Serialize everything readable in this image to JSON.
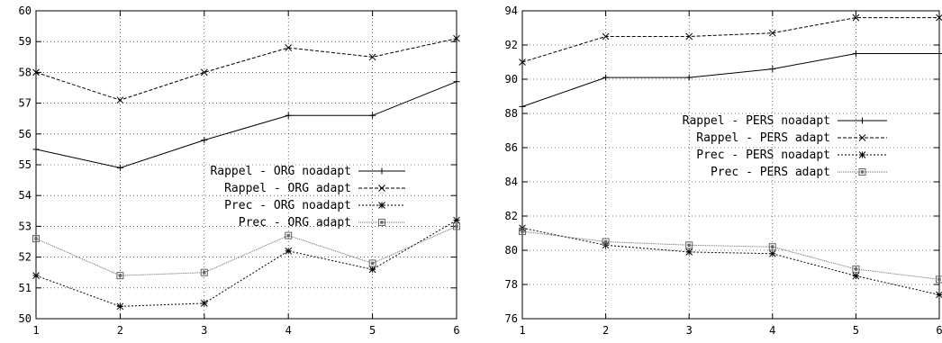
{
  "chart_data": [
    {
      "type": "line",
      "title": "",
      "xlabel": "",
      "ylabel": "",
      "x": [
        1,
        2,
        3,
        4,
        5,
        6
      ],
      "xlim": [
        1,
        6
      ],
      "ylim": [
        50,
        60
      ],
      "yticks": [
        50,
        51,
        52,
        53,
        54,
        55,
        56,
        57,
        58,
        59,
        60
      ],
      "xticks": [
        1,
        2,
        3,
        4,
        5,
        6
      ],
      "grid": true,
      "legend_position": "center-right",
      "series": [
        {
          "name": "Rappel - ORG noadapt",
          "values": [
            55.5,
            54.9,
            55.8,
            56.6,
            56.6,
            57.7
          ],
          "color": "#000000",
          "dash": "none",
          "marker": "plus"
        },
        {
          "name": "Rappel - ORG adapt",
          "values": [
            58.0,
            57.1,
            58.0,
            58.8,
            58.5,
            59.1
          ],
          "color": "#000000",
          "dash": "4 2",
          "marker": "x"
        },
        {
          "name": "Prec - ORG noadapt",
          "values": [
            51.4,
            50.4,
            50.5,
            52.2,
            51.6,
            53.2
          ],
          "color": "#000000",
          "dash": "2 2",
          "marker": "star"
        },
        {
          "name": "Prec - ORG adapt",
          "values": [
            52.6,
            51.4,
            51.5,
            52.7,
            51.8,
            53.0
          ],
          "color": "#666666",
          "dash": "1 1",
          "marker": "square"
        }
      ]
    },
    {
      "type": "line",
      "title": "",
      "xlabel": "",
      "ylabel": "",
      "x": [
        1,
        2,
        3,
        4,
        5,
        6
      ],
      "xlim": [
        1,
        6
      ],
      "ylim": [
        76,
        94
      ],
      "yticks": [
        76,
        78,
        80,
        82,
        84,
        86,
        88,
        90,
        92,
        94
      ],
      "xticks": [
        1,
        2,
        3,
        4,
        5,
        6
      ],
      "grid": true,
      "legend_position": "center-right",
      "series": [
        {
          "name": "Rappel - PERS noadapt",
          "values": [
            88.4,
            90.1,
            90.1,
            90.6,
            91.5,
            91.5
          ],
          "color": "#000000",
          "dash": "none",
          "marker": "plus"
        },
        {
          "name": "Rappel - PERS adapt",
          "values": [
            91.0,
            92.5,
            92.5,
            92.7,
            93.6,
            93.6
          ],
          "color": "#000000",
          "dash": "4 2",
          "marker": "x"
        },
        {
          "name": "Prec - PERS noadapt",
          "values": [
            81.3,
            80.3,
            79.9,
            79.8,
            78.5,
            77.4
          ],
          "color": "#000000",
          "dash": "2 2",
          "marker": "star"
        },
        {
          "name": "Prec - PERS adapt",
          "values": [
            81.1,
            80.5,
            80.3,
            80.2,
            78.9,
            78.3
          ],
          "color": "#666666",
          "dash": "1 1",
          "marker": "square"
        }
      ]
    }
  ]
}
